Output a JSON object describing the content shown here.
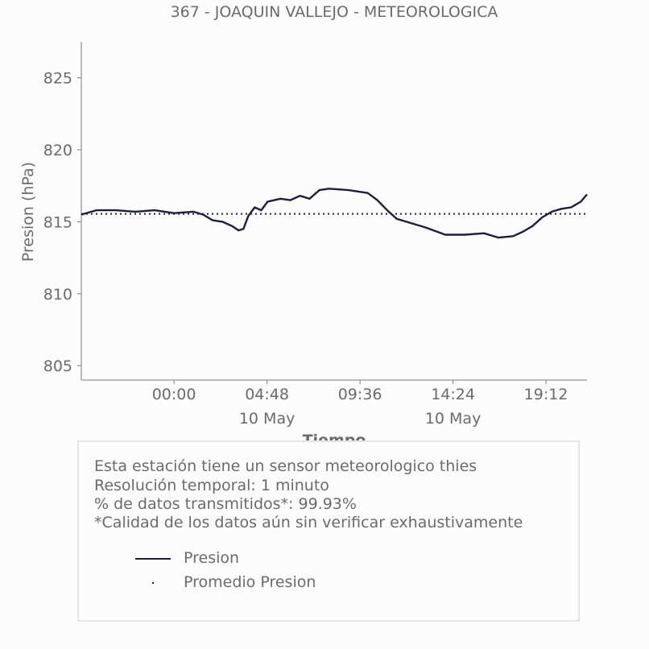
{
  "chart_data": {
    "type": "line",
    "title": "367 - JOAQUIN VALLEJO - METEOROLOGICA",
    "xlabel": "Tiempo",
    "ylabel": "Presion (hPa)",
    "ylim": [
      804,
      827.5
    ],
    "xlim": [
      "09 May 19:13",
      "10 May 21:19"
    ],
    "yticks": [
      805,
      810,
      815,
      820,
      825
    ],
    "xticks": [
      {
        "time": "00:00",
        "date": ""
      },
      {
        "time": "04:48",
        "date": "10 May"
      },
      {
        "time": "09:36",
        "date": ""
      },
      {
        "time": "14:24",
        "date": "10 May"
      },
      {
        "time": "19:12",
        "date": ""
      }
    ],
    "grid": false,
    "series": [
      {
        "name": "Presion",
        "style": "solid",
        "color": "#1e1f3b",
        "x": [
          "09 May 19:13",
          "09 May 20:00",
          "09 May 21:00",
          "09 May 22:00",
          "09 May 23:00",
          "10 May 00:00",
          "10 May 01:00",
          "10 May 01:30",
          "10 May 02:00",
          "10 May 02:30",
          "10 May 03:00",
          "10 May 03:20",
          "10 May 03:35",
          "10 May 03:50",
          "10 May 04:10",
          "10 May 04:30",
          "10 May 04:50",
          "10 May 05:30",
          "10 May 06:00",
          "10 May 06:30",
          "10 May 07:00",
          "10 May 07:30",
          "10 May 08:00",
          "10 May 09:00",
          "10 May 10:00",
          "10 May 10:30",
          "10 May 11:00",
          "10 May 11:30",
          "10 May 12:00",
          "10 May 12:30",
          "10 May 13:00",
          "10 May 14:00",
          "10 May 15:00",
          "10 May 16:00",
          "10 May 16:45",
          "10 May 17:30",
          "10 May 18:00",
          "10 May 18:30",
          "10 May 19:00",
          "10 May 19:30",
          "10 May 20:00",
          "10 May 20:30",
          "10 May 21:00",
          "10 May 21:19"
        ],
        "y": [
          815.5,
          815.8,
          815.8,
          815.7,
          815.8,
          815.6,
          815.7,
          815.5,
          815.1,
          815.0,
          814.7,
          814.4,
          814.5,
          815.4,
          816.0,
          815.8,
          816.4,
          816.6,
          816.5,
          816.8,
          816.6,
          817.2,
          817.3,
          817.2,
          817.0,
          816.5,
          815.8,
          815.2,
          815.0,
          814.8,
          814.6,
          814.1,
          814.1,
          814.2,
          813.9,
          814.0,
          814.3,
          814.7,
          815.3,
          815.7,
          815.9,
          816.0,
          816.4,
          816.9
        ]
      },
      {
        "name": "Promedio Presion",
        "style": "dotted",
        "color": "#1e1f3b",
        "y": 815.55
      }
    ]
  },
  "info": {
    "lines": [
      "Esta estación tiene un sensor meteorologico thies",
      "Resolución temporal: 1 minuto",
      "% de datos transmitidos*: 99.93%",
      "*Calidad de los datos aún sin verificar exhaustivamente"
    ],
    "legend": [
      {
        "label": "Presion"
      },
      {
        "label": "Promedio Presion"
      }
    ]
  }
}
